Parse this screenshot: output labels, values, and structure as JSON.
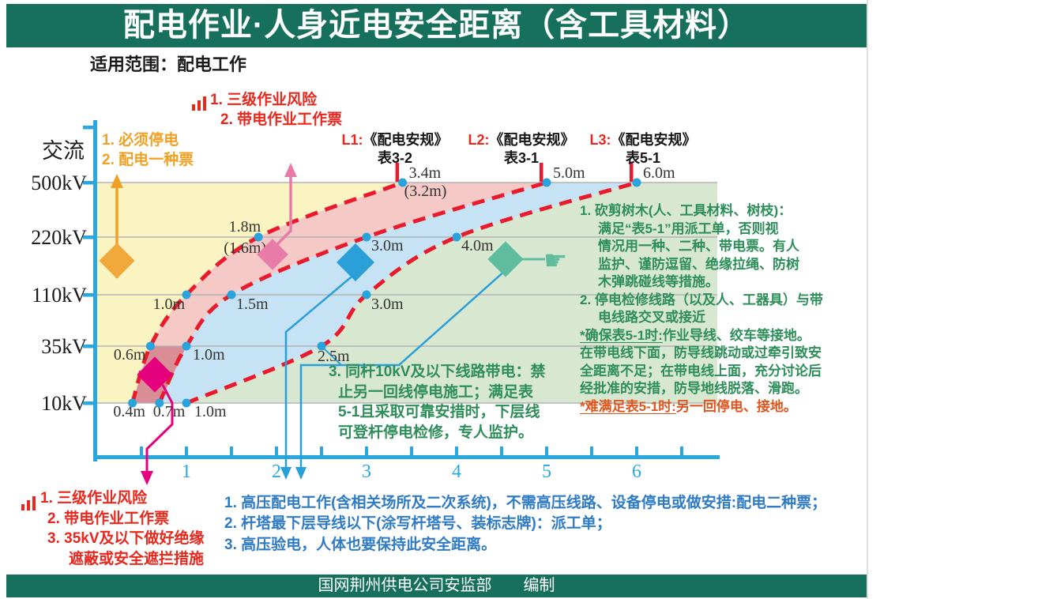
{
  "slide": {
    "title": "配电作业·人身近电安全距离（含工具材料）",
    "subtitle": "适用范围：配电工作",
    "footer": "国网荆州供电公司安监部　　编制"
  },
  "chart_data": {
    "type": "line",
    "title": "配电作业·人身近电安全距离（含工具材料）",
    "y_axis": {
      "label": "交流",
      "categories": [
        "10kV",
        "35kV",
        "110kV",
        "220kV",
        "500kV"
      ]
    },
    "x_axis": {
      "ticks": [
        1,
        2,
        3,
        4,
        5,
        6
      ],
      "minor_step": 0.5,
      "min": 0,
      "max": 6.5,
      "unit": "m"
    },
    "grid": true,
    "legend_position": "top",
    "series": [
      {
        "name": "L1",
        "ref_tag": "L1:",
        "ref_book": "《配电安规》",
        "ref_table": "表3-2",
        "values_m": [
          0.4,
          0.6,
          1.0,
          1.8,
          3.4
        ]
      },
      {
        "name": "L2",
        "ref_tag": "L2:",
        "ref_book": "《配电安规》",
        "ref_table": "表3-1",
        "values_m": [
          0.7,
          1.0,
          1.5,
          3.0,
          5.0
        ]
      },
      {
        "name": "L3",
        "ref_tag": "L3:",
        "ref_book": "《配电安规》",
        "ref_table": "表5-1",
        "values_m": [
          1.0,
          2.5,
          3.0,
          4.0,
          6.0
        ]
      }
    ],
    "alt_point_labels": [
      {
        "series": 0,
        "level": 4,
        "text": "(3.2m)"
      },
      {
        "series": 0,
        "level": 3,
        "text": "(1.6m)"
      }
    ],
    "colors": {
      "curve": "#e81a2c",
      "dot": "#29a3dc",
      "axis": "#29a8df",
      "grid": "#b3b3b3",
      "region_left": "#faf4c3",
      "region_l1_l2": "#f4c9c6",
      "region_l1_l2_low": "#d98e95",
      "region_l2_l3": "#c6e3f5",
      "region_beyond_l3": "#d8e7d0"
    }
  },
  "annotations": {
    "orange": {
      "lines": [
        "1. 必须停电",
        "2. 配电一种票"
      ]
    },
    "red_top": {
      "lines": [
        "1. 三级作业风险",
        "2. 带电作业工作票"
      ]
    },
    "red_bottom": {
      "lines": [
        "1. 三级作业风险",
        "2. 带电作业工作票",
        "3. 35kV及以下做好绝缘",
        "遮蔽或安全遮拦措施"
      ]
    },
    "green_box": {
      "lines": [
        "3. 同杆10kV及以下线路带电：禁",
        "止另一回线停电施工；满足表",
        "5-1且采取可靠安措时，下层线",
        "可登杆停电检修，专人监护。"
      ]
    },
    "green_right": {
      "item1_lines": [
        "1. 砍剪树木(人、工具材料、树枝)：",
        "满足“表5-1”用派工单，否则视",
        "情况用一种、二种、带电票。有人",
        "监护、谨防逗留、绝缘拉绳、防树",
        "木弹跳碰线等措施。"
      ],
      "item2_lines": [
        "2. 停电检修线路（以及人、工器具）与带",
        "电线路交叉或接近"
      ],
      "ok_lead": "*确保表5-1时:",
      "ok_first_rest": "作业导线、绞车等接地。",
      "ok_lines": [
        "在带电线下面，防导线跳动或过牵引致安",
        "全距离不足；在带电线上面，充分讨论后",
        "经批准的安措，防导地线脱落、滑跑。"
      ],
      "hard_lead": "*难满足表5-1时:",
      "hard_rest": "另一回停电、接地。"
    },
    "blue_bottom": {
      "lines": [
        "1. 高压配电工作(含相关场所及二次系统)，不需高压线路、设备停电或做安措:配电二种票；",
        "2. 杆塔最下层导线以下(涂写杆塔号、装标志牌)：派工单；",
        "3. 高压验电，人体也要保持此安全距离。"
      ]
    }
  }
}
